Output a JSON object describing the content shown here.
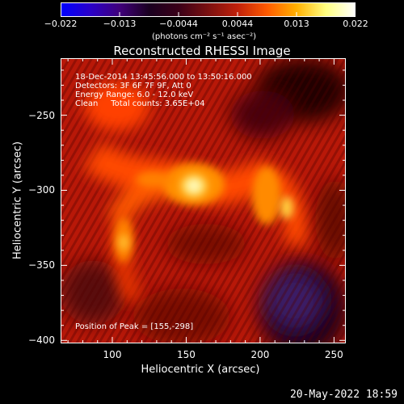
{
  "colorbar": {
    "ticks": [
      "−0.022",
      "−0.013",
      "−0.0044",
      "0.0044",
      "0.013",
      "0.022"
    ],
    "unit": "(photons cm⁻² s⁻¹ asec⁻²)",
    "colors": [
      "#0000ff",
      "#2a00c8",
      "#40007a",
      "#1a0020",
      "#3a0018",
      "#7a1010",
      "#c0200a",
      "#ff5a00",
      "#ffb000",
      "#ffff80",
      "#ffffff"
    ]
  },
  "chart_data": {
    "type": "heatmap",
    "title": "Reconstructed RHESSI Image",
    "xlabel": "Heliocentric X (arcsec)",
    "ylabel": "Heliocentric Y (arcsec)",
    "x_ticks": [
      "100",
      "150",
      "200",
      "250"
    ],
    "y_ticks": [
      "−250",
      "−300",
      "−350",
      "−400"
    ],
    "xlim": [
      65,
      258
    ],
    "ylim": [
      -402,
      -212
    ],
    "clim": [
      -0.022,
      0.022
    ],
    "peak": {
      "x": 155,
      "y": -298
    },
    "annotations": [
      "18-Dec-2014 13:45:56.000 to 13:50:16.000",
      "Detectors: 3F 6F 7F 9F, Att 0",
      "Energy Range: 6.0 - 12.0 keV",
      "Clean     Total counts: 3.65E+04"
    ],
    "peak_label": "Position of Peak = [155,-298]"
  },
  "timestamp": "20-May-2022 18:59"
}
